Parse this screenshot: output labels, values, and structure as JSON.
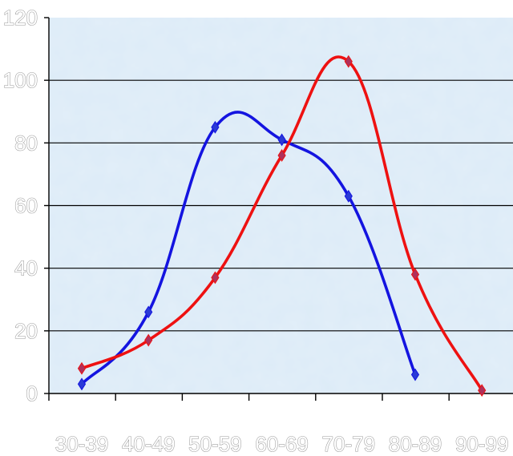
{
  "chart_data": {
    "type": "line",
    "title": "",
    "xlabel": "",
    "ylabel": "",
    "categories": [
      "30-39",
      "40-49",
      "50-59",
      "60-69",
      "70-79",
      "80-89",
      "90-99"
    ],
    "ylim": [
      0,
      120
    ],
    "yticks": [
      0,
      20,
      40,
      60,
      80,
      100,
      120
    ],
    "grid": true,
    "legend": "none",
    "smooth": true,
    "series": [
      {
        "color": "#1414e0",
        "marker_color": "#2a3ad6",
        "values": [
          3,
          26,
          85,
          81,
          63,
          6,
          null
        ]
      },
      {
        "color": "#ee1111",
        "marker_color": "#b0305a",
        "values": [
          8,
          17,
          37,
          76,
          106,
          38,
          1
        ]
      }
    ],
    "colors": {
      "plot_background": "#dcebf7",
      "plot_texture": "#c2dbee",
      "grid": "#000000"
    }
  }
}
